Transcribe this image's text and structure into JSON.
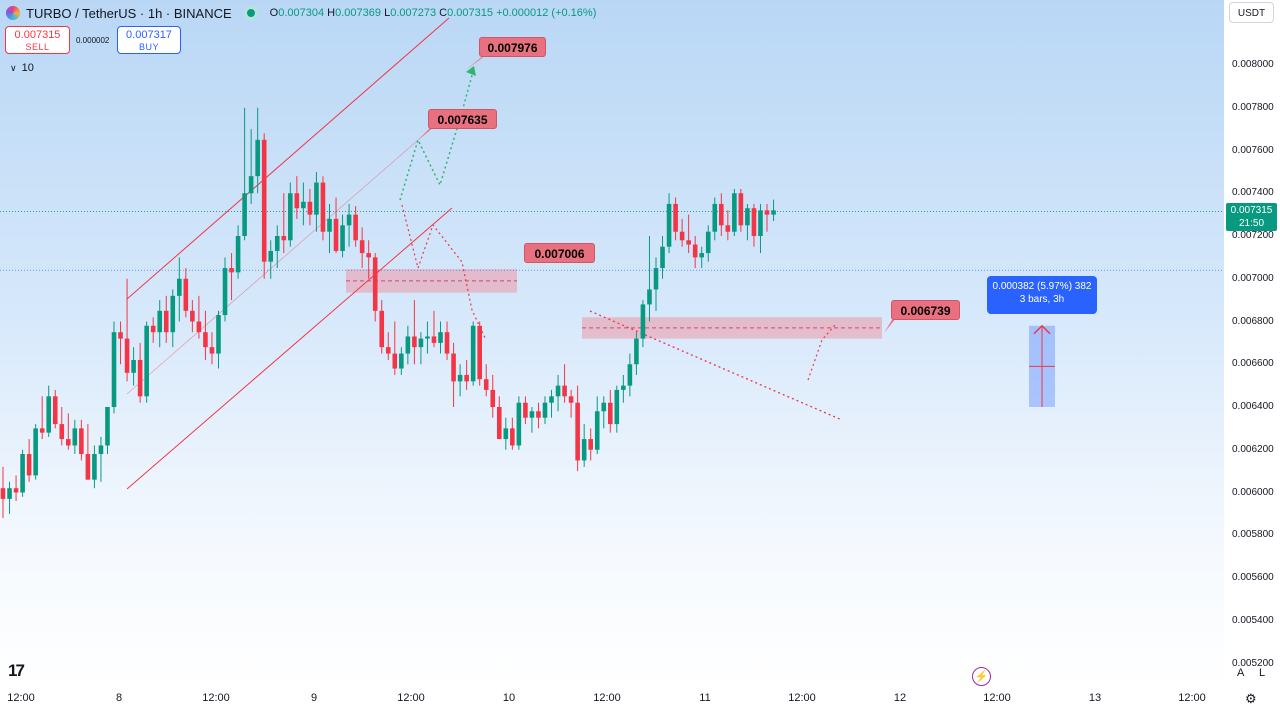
{
  "legend": {
    "symbol": "TURBO / TetherUS · 1h · BINANCE",
    "open_label": "O",
    "open": "0.007304",
    "high_label": "H",
    "high": "0.007369",
    "low_label": "L",
    "low": "0.007273",
    "close_label": "C",
    "close": "0.007315",
    "change": "+0.000012 (+0.16%)"
  },
  "trade": {
    "sell_price": "0.007315",
    "sell_label": "SELL",
    "spread": "0.000002",
    "buy_price": "0.007317",
    "buy_label": "BUY"
  },
  "indicator": {
    "volume": "10"
  },
  "currency": "USDT",
  "last_price": {
    "price": "0.007315",
    "countdown": "21:50"
  },
  "measure": {
    "line1": "0.000382 (5.97%) 382",
    "line2": "3 bars, 3h"
  },
  "callouts": {
    "c1": "0.007976",
    "c2": "0.007635",
    "c3": "0.007006",
    "c4": "0.006739"
  },
  "y_ticks": [
    "0.008000",
    "0.007800",
    "0.007600",
    "0.007400",
    "0.007200",
    "0.007000",
    "0.006800",
    "0.006600",
    "0.006400",
    "0.006200",
    "0.006000",
    "0.005800",
    "0.005600",
    "0.005400",
    "0.005200"
  ],
  "x_ticks": [
    "12:00",
    "8",
    "12:00",
    "9",
    "12:00",
    "10",
    "12:00",
    "11",
    "12:00",
    "12",
    "12:00",
    "13",
    "12:00"
  ],
  "toolbar": {
    "auto": "A",
    "log": "L"
  },
  "colors": {
    "up": "#089981",
    "down": "#f23645",
    "channel": "#f23645",
    "zone": "#e8a8b8",
    "measure": "#2962ff"
  },
  "chart_data": {
    "type": "candlestick",
    "title": "TURBO / TetherUS · 1h · BINANCE",
    "timeframe": "1h",
    "ylim": [
      0.0052,
      0.0081
    ],
    "x_tick_labels": [
      "12:00",
      "8",
      "12:00",
      "9",
      "12:00",
      "10",
      "12:00",
      "11",
      "12:00",
      "12",
      "12:00",
      "13",
      "12:00"
    ],
    "candles": [
      [
        0.00602,
        0.00612,
        0.00588,
        0.00597
      ],
      [
        0.00597,
        0.00605,
        0.0059,
        0.00602
      ],
      [
        0.00602,
        0.00608,
        0.00596,
        0.006
      ],
      [
        0.006,
        0.0062,
        0.00598,
        0.00618
      ],
      [
        0.00618,
        0.00625,
        0.00605,
        0.00608
      ],
      [
        0.00608,
        0.00632,
        0.00606,
        0.0063
      ],
      [
        0.0063,
        0.00645,
        0.00625,
        0.00628
      ],
      [
        0.00628,
        0.0065,
        0.00626,
        0.00645
      ],
      [
        0.00645,
        0.00648,
        0.0063,
        0.00632
      ],
      [
        0.00632,
        0.0064,
        0.00622,
        0.00625
      ],
      [
        0.00625,
        0.00637,
        0.0062,
        0.00622
      ],
      [
        0.00622,
        0.00634,
        0.00618,
        0.0063
      ],
      [
        0.0063,
        0.00634,
        0.00615,
        0.00618
      ],
      [
        0.00618,
        0.00632,
        0.00606,
        0.00606
      ],
      [
        0.00606,
        0.00622,
        0.00602,
        0.00618
      ],
      [
        0.00618,
        0.00626,
        0.00605,
        0.00622
      ],
      [
        0.00622,
        0.0064,
        0.00618,
        0.0064
      ],
      [
        0.0064,
        0.0068,
        0.00637,
        0.00675
      ],
      [
        0.00675,
        0.0068,
        0.0066,
        0.00672
      ],
      [
        0.00672,
        0.007,
        0.00652,
        0.00656
      ],
      [
        0.00656,
        0.00668,
        0.0065,
        0.00662
      ],
      [
        0.00662,
        0.0067,
        0.00642,
        0.00645
      ],
      [
        0.00645,
        0.0068,
        0.00642,
        0.00678
      ],
      [
        0.00678,
        0.00682,
        0.0067,
        0.00675
      ],
      [
        0.00675,
        0.0069,
        0.00668,
        0.00685
      ],
      [
        0.00685,
        0.00692,
        0.0067,
        0.00675
      ],
      [
        0.00675,
        0.00695,
        0.00668,
        0.00692
      ],
      [
        0.00692,
        0.0071,
        0.0068,
        0.007
      ],
      [
        0.007,
        0.00705,
        0.00682,
        0.00685
      ],
      [
        0.00685,
        0.0069,
        0.00675,
        0.0068
      ],
      [
        0.0068,
        0.00692,
        0.00672,
        0.00675
      ],
      [
        0.00675,
        0.00685,
        0.00662,
        0.00668
      ],
      [
        0.00668,
        0.00675,
        0.0066,
        0.00665
      ],
      [
        0.00665,
        0.00685,
        0.00658,
        0.00683
      ],
      [
        0.00683,
        0.0071,
        0.0068,
        0.00705
      ],
      [
        0.00705,
        0.00712,
        0.0069,
        0.00703
      ],
      [
        0.00703,
        0.00725,
        0.007,
        0.0072
      ],
      [
        0.0072,
        0.0078,
        0.00718,
        0.0074
      ],
      [
        0.0074,
        0.0077,
        0.00735,
        0.00748
      ],
      [
        0.00748,
        0.0078,
        0.0074,
        0.00765
      ],
      [
        0.00765,
        0.00768,
        0.007,
        0.00708
      ],
      [
        0.00708,
        0.00718,
        0.007,
        0.00713
      ],
      [
        0.00713,
        0.00725,
        0.00705,
        0.0072
      ],
      [
        0.0072,
        0.0074,
        0.00712,
        0.00718
      ],
      [
        0.00718,
        0.00745,
        0.00715,
        0.0074
      ],
      [
        0.0074,
        0.00748,
        0.00728,
        0.00733
      ],
      [
        0.00733,
        0.00745,
        0.00725,
        0.00736
      ],
      [
        0.00736,
        0.00742,
        0.00725,
        0.0073
      ],
      [
        0.0073,
        0.0075,
        0.00722,
        0.00745
      ],
      [
        0.00745,
        0.00748,
        0.00718,
        0.00722
      ],
      [
        0.00722,
        0.00735,
        0.00712,
        0.00728
      ],
      [
        0.00728,
        0.00738,
        0.00712,
        0.00713
      ],
      [
        0.00713,
        0.0073,
        0.0071,
        0.00725
      ],
      [
        0.00725,
        0.00735,
        0.00715,
        0.0073
      ],
      [
        0.0073,
        0.00734,
        0.00715,
        0.00718
      ],
      [
        0.00718,
        0.00724,
        0.00705,
        0.00712
      ],
      [
        0.00712,
        0.00718,
        0.007,
        0.0071
      ],
      [
        0.0071,
        0.00712,
        0.0068,
        0.00685
      ],
      [
        0.00685,
        0.0069,
        0.00665,
        0.00668
      ],
      [
        0.00668,
        0.00675,
        0.00662,
        0.00665
      ],
      [
        0.00665,
        0.0068,
        0.00655,
        0.00658
      ],
      [
        0.00658,
        0.00668,
        0.00655,
        0.00665
      ],
      [
        0.00665,
        0.00678,
        0.0066,
        0.00673
      ],
      [
        0.00673,
        0.0069,
        0.0066,
        0.00668
      ],
      [
        0.00668,
        0.00675,
        0.0066,
        0.00672
      ],
      [
        0.00672,
        0.0068,
        0.00665,
        0.00673
      ],
      [
        0.00673,
        0.00685,
        0.00668,
        0.0067
      ],
      [
        0.0067,
        0.0068,
        0.00665,
        0.00675
      ],
      [
        0.00675,
        0.0068,
        0.00662,
        0.00665
      ],
      [
        0.00665,
        0.0067,
        0.0064,
        0.00652
      ],
      [
        0.00652,
        0.0066,
        0.00645,
        0.00655
      ],
      [
        0.00655,
        0.00662,
        0.00648,
        0.00652
      ],
      [
        0.00652,
        0.0068,
        0.0065,
        0.00678
      ],
      [
        0.00678,
        0.0068,
        0.0065,
        0.00653
      ],
      [
        0.00653,
        0.0066,
        0.00645,
        0.00648
      ],
      [
        0.00648,
        0.00655,
        0.00635,
        0.0064
      ],
      [
        0.0064,
        0.00645,
        0.00625,
        0.00625
      ],
      [
        0.00625,
        0.00635,
        0.0062,
        0.0063
      ],
      [
        0.0063,
        0.00635,
        0.0062,
        0.00622
      ],
      [
        0.00622,
        0.00645,
        0.0062,
        0.00642
      ],
      [
        0.00642,
        0.00645,
        0.00632,
        0.00635
      ],
      [
        0.00635,
        0.0064,
        0.00628,
        0.00638
      ],
      [
        0.00638,
        0.00642,
        0.0063,
        0.00635
      ],
      [
        0.00635,
        0.00645,
        0.00632,
        0.00642
      ],
      [
        0.00642,
        0.00648,
        0.00635,
        0.00645
      ],
      [
        0.00645,
        0.00655,
        0.00638,
        0.0065
      ],
      [
        0.0065,
        0.0066,
        0.00642,
        0.00645
      ],
      [
        0.00645,
        0.00648,
        0.00635,
        0.00642
      ],
      [
        0.00642,
        0.0065,
        0.0061,
        0.00615
      ],
      [
        0.00615,
        0.00632,
        0.00612,
        0.00625
      ],
      [
        0.00625,
        0.0063,
        0.00615,
        0.0062
      ],
      [
        0.0062,
        0.00645,
        0.00618,
        0.00638
      ],
      [
        0.00638,
        0.00645,
        0.0063,
        0.00642
      ],
      [
        0.00642,
        0.00648,
        0.00628,
        0.00632
      ],
      [
        0.00632,
        0.0065,
        0.00628,
        0.00648
      ],
      [
        0.00648,
        0.00655,
        0.00642,
        0.0065
      ],
      [
        0.0065,
        0.00665,
        0.00645,
        0.0066
      ],
      [
        0.0066,
        0.00675,
        0.00655,
        0.00672
      ],
      [
        0.00672,
        0.0069,
        0.00668,
        0.00688
      ],
      [
        0.00688,
        0.0072,
        0.0068,
        0.00695
      ],
      [
        0.00695,
        0.0071,
        0.00685,
        0.00705
      ],
      [
        0.00705,
        0.0072,
        0.007,
        0.00715
      ],
      [
        0.00715,
        0.0074,
        0.00712,
        0.00735
      ],
      [
        0.00735,
        0.00738,
        0.00718,
        0.00722
      ],
      [
        0.00722,
        0.00728,
        0.00715,
        0.00718
      ],
      [
        0.00718,
        0.0073,
        0.00712,
        0.00716
      ],
      [
        0.00716,
        0.0072,
        0.00705,
        0.0071
      ],
      [
        0.0071,
        0.00715,
        0.00705,
        0.00712
      ],
      [
        0.00712,
        0.00725,
        0.00708,
        0.00722
      ],
      [
        0.00722,
        0.00738,
        0.00718,
        0.00735
      ],
      [
        0.00735,
        0.0074,
        0.0072,
        0.00725
      ],
      [
        0.00725,
        0.00732,
        0.00718,
        0.00722
      ],
      [
        0.00722,
        0.00742,
        0.0072,
        0.0074
      ],
      [
        0.0074,
        0.00742,
        0.00722,
        0.00725
      ],
      [
        0.00725,
        0.00735,
        0.00718,
        0.00733
      ],
      [
        0.00733,
        0.00735,
        0.00715,
        0.0072
      ],
      [
        0.0072,
        0.00735,
        0.00712,
        0.00732
      ],
      [
        0.00732,
        0.00735,
        0.00722,
        0.0073
      ],
      [
        0.0073,
        0.00737,
        0.00727,
        0.00732
      ]
    ],
    "annotations": [
      {
        "type": "price_label",
        "value": 0.007976
      },
      {
        "type": "price_label",
        "value": 0.007635
      },
      {
        "type": "price_label",
        "value": 0.007006
      },
      {
        "type": "price_label",
        "value": 0.006739
      },
      {
        "type": "range_measure",
        "change": 0.000382,
        "percent": 5.97,
        "bars": 3
      }
    ]
  }
}
